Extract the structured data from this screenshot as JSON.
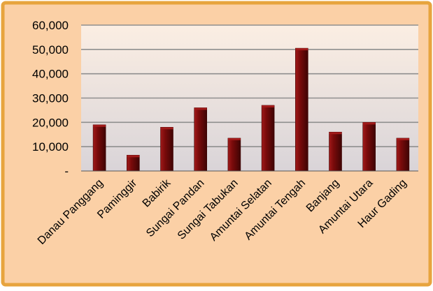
{
  "chart_data": {
    "type": "bar",
    "title": "",
    "xlabel": "",
    "ylabel": "",
    "categories": [
      "Danau Panggang",
      "Paminggir",
      "Babirik",
      "Sungai Pandan",
      "Sungai Tabukan",
      "Amuntai Selatan",
      "Amuntai Tengah",
      "Banjang",
      "Amuntai Utara",
      "Haur Gading"
    ],
    "values": [
      19000,
      6500,
      18000,
      26000,
      13500,
      27000,
      50500,
      16000,
      20000,
      13500
    ],
    "ylim": [
      0,
      60000
    ],
    "yticks": [
      0,
      10000,
      20000,
      30000,
      40000,
      50000,
      60000
    ],
    "ytick_labels": [
      "-",
      "10,000",
      "20,000",
      "30,000",
      "40,000",
      "50,000",
      "60,000"
    ],
    "grid": true,
    "legend": "none",
    "colors": {
      "bar": "#7a0b0b",
      "bar_highlight": "#a11a1a",
      "bar_dark": "#3e0404",
      "plot_background_top": "#fbeee3",
      "plot_background_bottom": "#d9d4d8",
      "frame_background": "#fbd0a6",
      "frame_border": "#e7a43e",
      "gridline": "#8f8f8f",
      "text": "#000000"
    }
  }
}
